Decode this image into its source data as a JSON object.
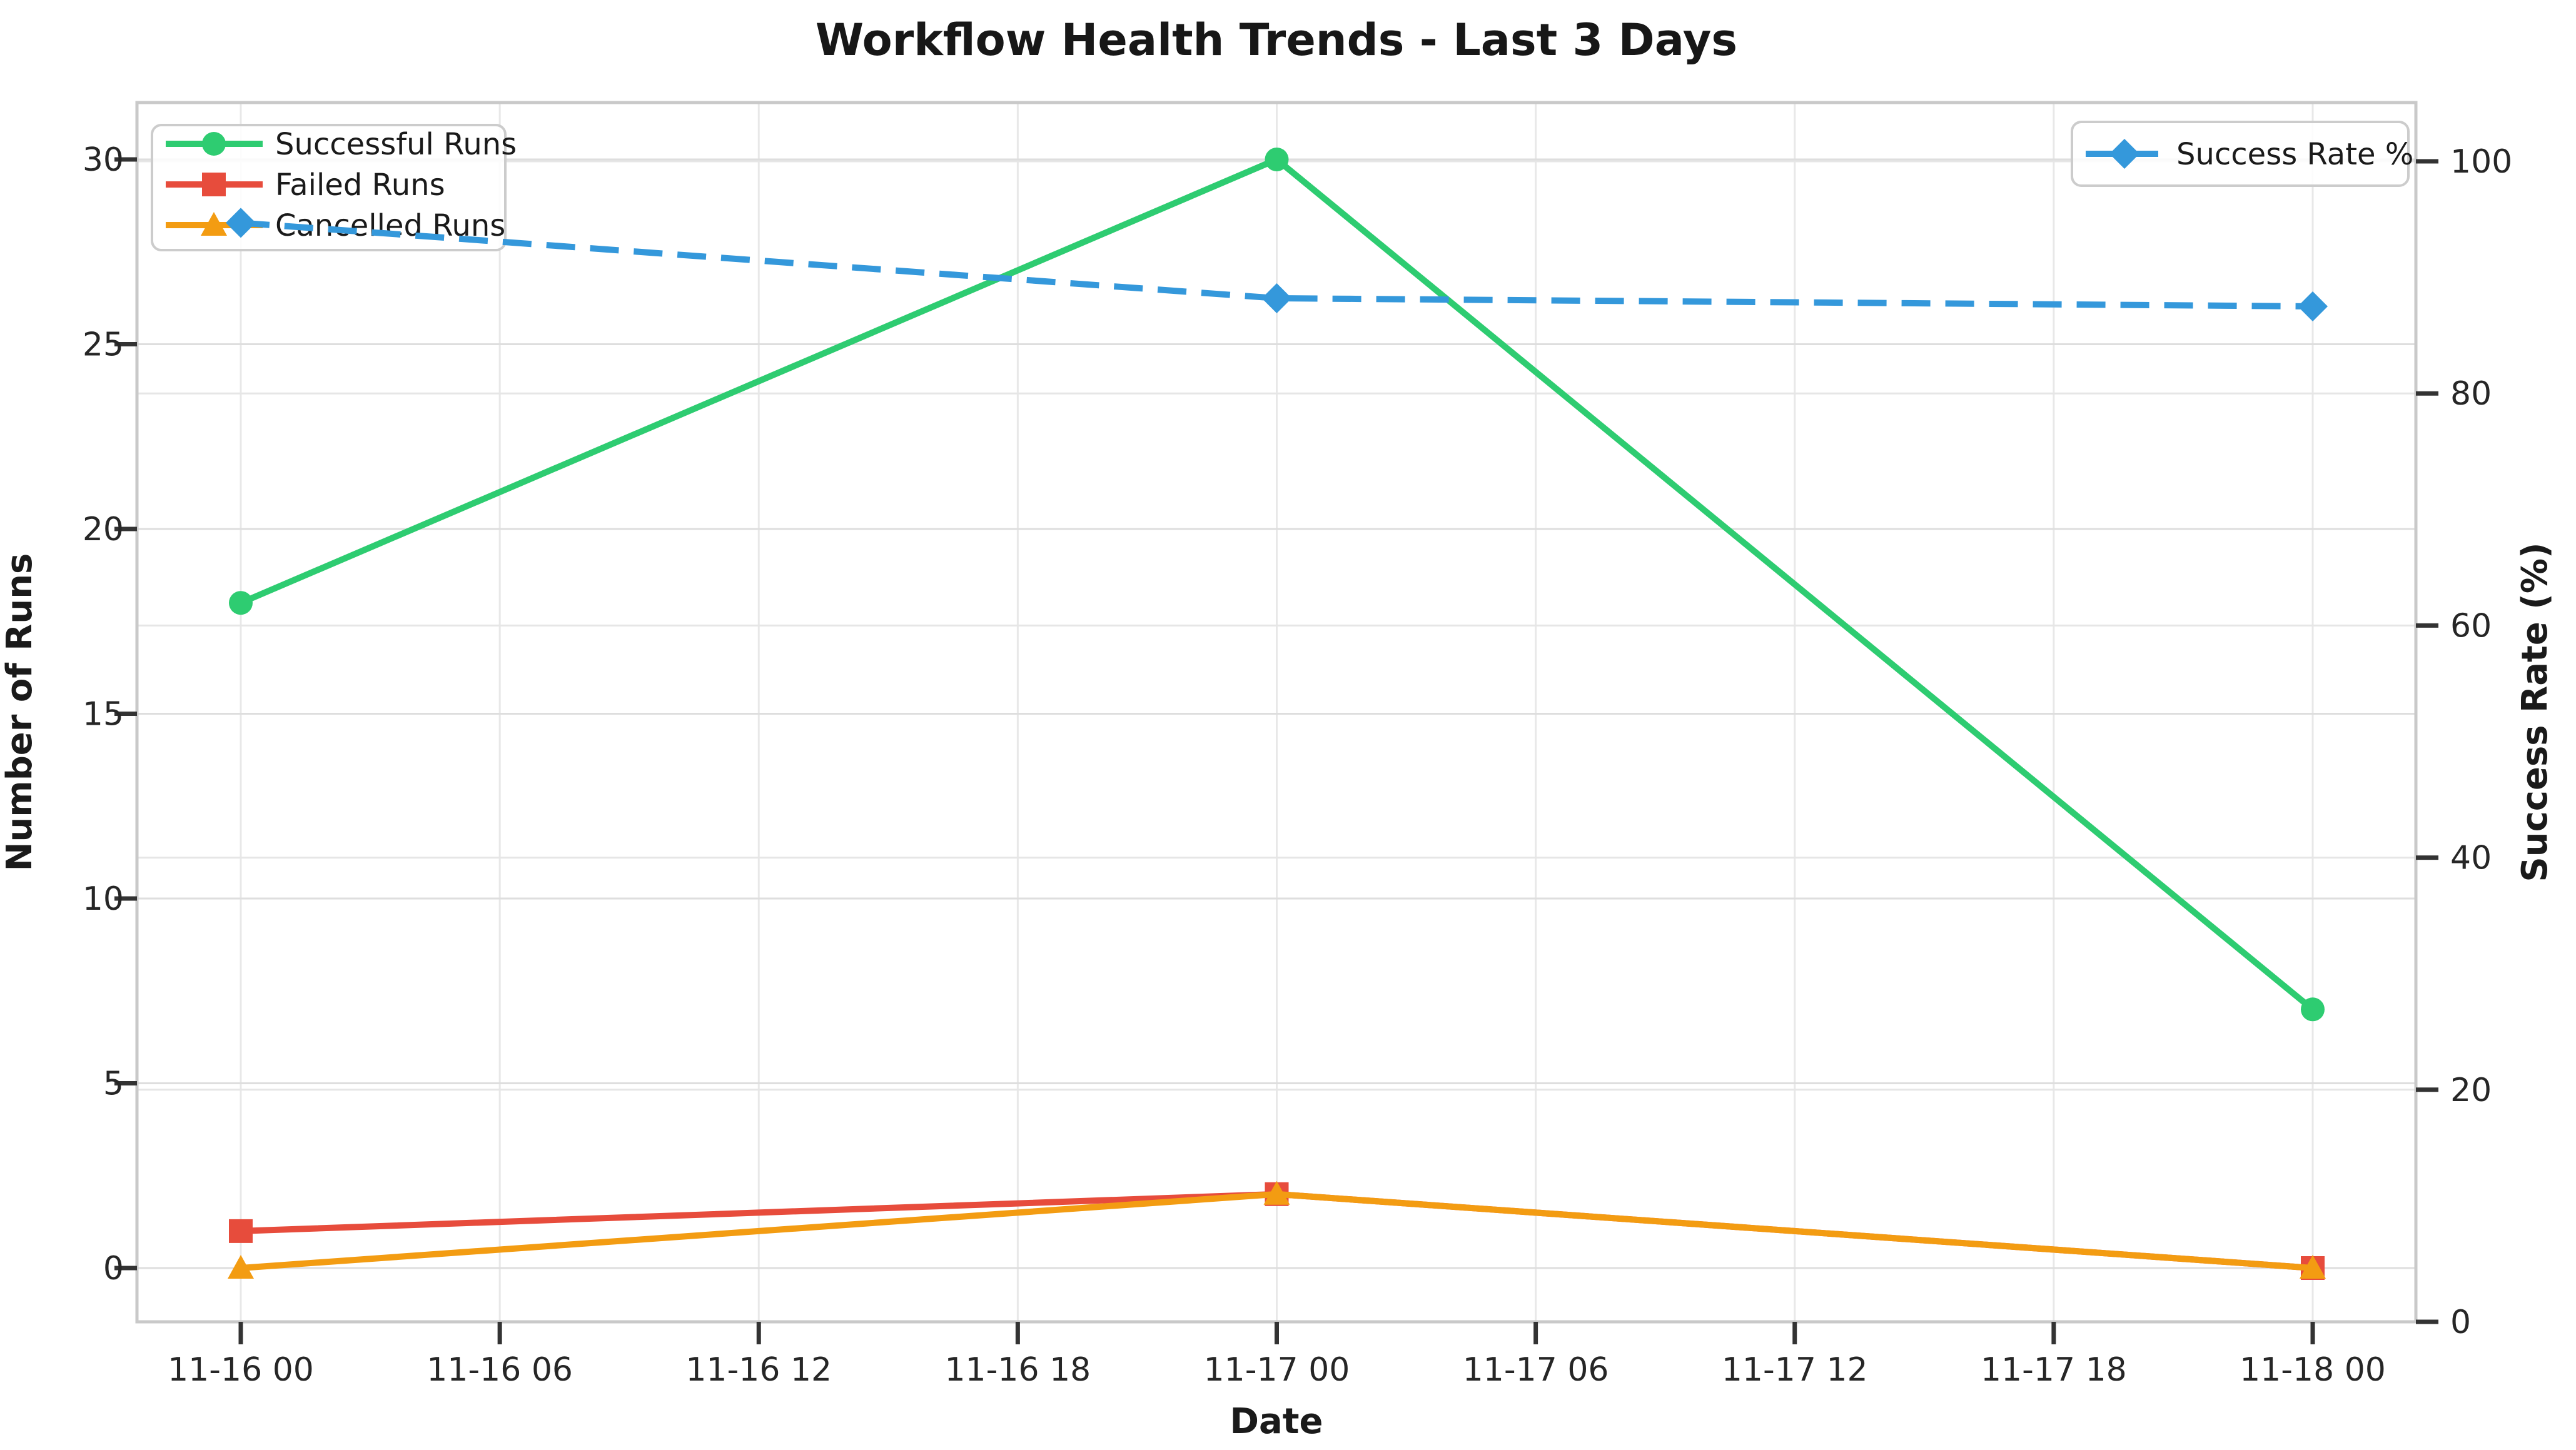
{
  "figure": {
    "background": "#ffffff"
  },
  "chart_data": {
    "type": "line",
    "title": "Workflow Health Trends - Last 3 Days",
    "xlabel": "Date",
    "ylabel_left": "Number of Runs",
    "ylabel_right": "Success Rate (%)",
    "x_tick_labels": [
      "11-16 00",
      "11-16 06",
      "11-16 12",
      "11-16 18",
      "11-17 00",
      "11-17 06",
      "11-17 12",
      "11-17 18",
      "11-18 00"
    ],
    "x_tick_hours": [
      0,
      6,
      12,
      18,
      24,
      30,
      36,
      42,
      48
    ],
    "x_data_labels": [
      "11-16 00",
      "11-17 00",
      "11-18 00"
    ],
    "x_data_hours": [
      0,
      24,
      48
    ],
    "y_ticks_left": [
      0,
      5,
      10,
      15,
      20,
      25,
      30
    ],
    "y_ticks_right": [
      0,
      20,
      40,
      60,
      80,
      100
    ],
    "ylim_left": [
      -1.5,
      31.5
    ],
    "ylim_right": [
      0,
      105
    ],
    "grid": true,
    "legend_left_position": "upper left",
    "legend_right_position": "upper right",
    "series": [
      {
        "name": "Successful Runs",
        "axis": "left",
        "color": "#2ecc71",
        "marker": "circle",
        "line_style": "solid",
        "values": [
          18,
          30,
          7
        ]
      },
      {
        "name": "Failed Runs",
        "axis": "left",
        "color": "#e74c3c",
        "marker": "square",
        "line_style": "solid",
        "values": [
          1,
          2,
          0
        ]
      },
      {
        "name": "Cancelled Runs",
        "axis": "left",
        "color": "#f39c12",
        "marker": "triangle",
        "line_style": "solid",
        "values": [
          0,
          2,
          0
        ]
      },
      {
        "name": "Success Rate %",
        "axis": "right",
        "color": "#3498db",
        "marker": "diamond",
        "line_style": "dashed",
        "values": [
          94.7,
          88.2,
          87.5
        ]
      }
    ]
  }
}
